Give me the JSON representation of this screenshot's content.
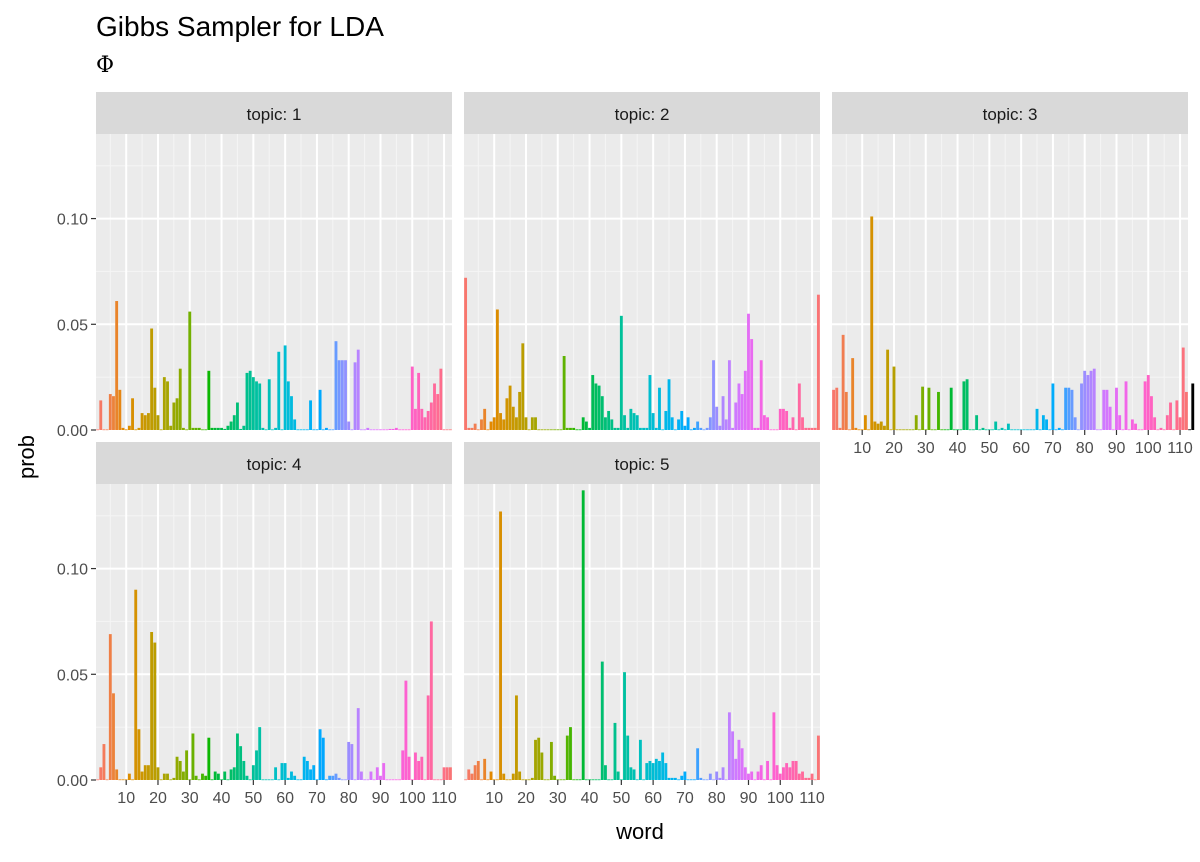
{
  "chart_data": {
    "type": "bar",
    "title": "Gibbs Sampler for LDA",
    "subtitle": "Φ",
    "xlabel": "word",
    "ylabel": "prob",
    "facet_prefix": "topic: ",
    "xlim": [
      0.5,
      112.5
    ],
    "ylim": [
      0,
      0.14
    ],
    "x_ticks": [
      "10",
      "20",
      "30",
      "40",
      "50",
      "60",
      "70",
      "80",
      "90",
      "100",
      "110"
    ],
    "y_ticks": [
      "0.00",
      "0.05",
      "0.10"
    ],
    "grid": true,
    "legend": "none",
    "hue_start": 15,
    "hue_end": 375,
    "series": [
      {
        "name": "1",
        "values": [
          0.0003,
          0.014,
          0.0003,
          0.0003,
          0.017,
          0.016,
          0.061,
          0.019,
          0.001,
          0.0003,
          0.002,
          0.015,
          0.0003,
          0.001,
          0.008,
          0.007,
          0.008,
          0.048,
          0.02,
          0.007,
          0.0003,
          0.025,
          0.023,
          0.002,
          0.013,
          0.015,
          0.029,
          0.001,
          0.0003,
          0.056,
          0.001,
          0.001,
          0.001,
          0.0003,
          0.0003,
          0.028,
          0.001,
          0.001,
          0.001,
          0.001,
          0.0005,
          0.002,
          0.004,
          0.007,
          0.013,
          0.0005,
          0.002,
          0.027,
          0.028,
          0.025,
          0.023,
          0.022,
          0.001,
          0.0003,
          0.024,
          0.0003,
          0.001,
          0.037,
          0.0003,
          0.04,
          0.023,
          0.016,
          0.005,
          0.0003,
          0.0003,
          0.0003,
          0.0003,
          0.014,
          0.0003,
          0.0003,
          0.019,
          0.0003,
          0.001,
          0.0003,
          0.0003,
          0.042,
          0.033,
          0.033,
          0.033,
          0.004,
          0.0003,
          0.032,
          0.038,
          0.0003,
          0.0003,
          0.001,
          0.0003,
          0.0003,
          0.0003,
          0.0003,
          0.0003,
          0.0003,
          0.0005,
          0.0005,
          0.001,
          0.0003,
          0.0003,
          0.0003,
          0.0003,
          0.03,
          0.01,
          0.027,
          0.01,
          0.006,
          0.009,
          0.013,
          0.022,
          0.017,
          0.029,
          0.0003,
          0.0003,
          0.0003
        ]
      },
      {
        "name": "2",
        "values": [
          0.072,
          0.001,
          0.001,
          0.003,
          0.0003,
          0.005,
          0.01,
          0.0003,
          0.004,
          0.006,
          0.057,
          0.008,
          0.005,
          0.015,
          0.021,
          0.011,
          0.006,
          0.018,
          0.041,
          0.006,
          0.0003,
          0.006,
          0.006,
          0.0003,
          0.0003,
          0.0003,
          0.0003,
          0.0003,
          0.0003,
          0.0003,
          0.0003,
          0.035,
          0.001,
          0.001,
          0.001,
          0.0003,
          0.0003,
          0.006,
          0.004,
          0.001,
          0.026,
          0.022,
          0.021,
          0.016,
          0.006,
          0.009,
          0.005,
          0.001,
          0.001,
          0.054,
          0.007,
          0.001,
          0.01,
          0.008,
          0.007,
          0.001,
          0.001,
          0.001,
          0.026,
          0.008,
          0.001,
          0.02,
          0.0003,
          0.009,
          0.024,
          0.006,
          0.0003,
          0.005,
          0.009,
          0.002,
          0.006,
          0.0003,
          0.001,
          0.004,
          0.001,
          0.0003,
          0.001,
          0.006,
          0.033,
          0.011,
          0.002,
          0.016,
          0.005,
          0.033,
          0.001,
          0.013,
          0.022,
          0.017,
          0.028,
          0.055,
          0.043,
          0.001,
          0.001,
          0.033,
          0.007,
          0.006,
          0.0003,
          0.0003,
          0.0003,
          0.01,
          0.01,
          0.009,
          0.001,
          0.006,
          0.0003,
          0.022,
          0.006,
          0.001,
          0.001,
          0.001,
          0.001,
          0.064
        ]
      },
      {
        "name": "3",
        "values": [
          0.019,
          0.02,
          0.001,
          0.045,
          0.018,
          0.0003,
          0.034,
          0.001,
          0.0003,
          0.0003,
          0.007,
          0.0003,
          0.101,
          0.004,
          0.003,
          0.004,
          0.002,
          0.038,
          0.0003,
          0.03,
          0.0003,
          0.0003,
          0.0003,
          0.0003,
          0.0003,
          0.0003,
          0.007,
          0.0003,
          0.0205,
          0.0003,
          0.02,
          0.0003,
          0.0003,
          0.018,
          0.0003,
          0.0003,
          0.0003,
          0.02,
          0.0003,
          0.0003,
          0.0003,
          0.023,
          0.024,
          0.0003,
          0.0003,
          0.007,
          0.0003,
          0.001,
          0.0003,
          0.0003,
          0.0003,
          0.004,
          0.0003,
          0.001,
          0.0003,
          0.003,
          0.0003,
          0.0003,
          0.0003,
          0.0003,
          0.0003,
          0.0003,
          0.0003,
          0.0003,
          0.01,
          0.0003,
          0.007,
          0.005,
          0.0003,
          0.022,
          0.0003,
          0.001,
          0.0003,
          0.02,
          0.02,
          0.019,
          0.006,
          0.0003,
          0.022,
          0.028,
          0.026,
          0.028,
          0.029,
          0.0003,
          0.0003,
          0.019,
          0.019,
          0.011,
          0.0003,
          0.02,
          0.007,
          0.0003,
          0.023,
          0.0003,
          0.005,
          0.003,
          0.0003,
          0.0003,
          0.023,
          0.026,
          0.016,
          0.006,
          0.0003,
          0.001,
          0.0003,
          0.007,
          0.013,
          0.0003,
          0.014,
          0.006,
          0.039,
          0.018,
          0.0003,
          0.022
        ]
      },
      {
        "name": "4",
        "values": [
          0.0003,
          0.006,
          0.017,
          0.0003,
          0.069,
          0.041,
          0.005,
          0.0003,
          0.0003,
          0.0003,
          0.003,
          0.0003,
          0.09,
          0.024,
          0.004,
          0.007,
          0.007,
          0.07,
          0.065,
          0.006,
          0.0003,
          0.003,
          0.003,
          0.0003,
          0.001,
          0.011,
          0.009,
          0.004,
          0.014,
          0.0003,
          0.022,
          0.002,
          0.0003,
          0.003,
          0.002,
          0.02,
          0.0003,
          0.004,
          0.003,
          0.0003,
          0.004,
          0.0003,
          0.005,
          0.006,
          0.022,
          0.016,
          0.009,
          0.002,
          0.0003,
          0.007,
          0.014,
          0.025,
          0.0003,
          0.0003,
          0.0003,
          0.0003,
          0.006,
          0.0003,
          0.008,
          0.008,
          0.001,
          0.004,
          0.002,
          0.0003,
          0.0003,
          0.011,
          0.009,
          0.005,
          0.007,
          0.0003,
          0.024,
          0.02,
          0.0003,
          0.002,
          0.002,
          0.003,
          0.001,
          0.0003,
          0.0003,
          0.018,
          0.017,
          0.0003,
          0.034,
          0.004,
          0.0003,
          0.0003,
          0.004,
          0.0003,
          0.006,
          0.002,
          0.008,
          0.0003,
          0.0003,
          0.0003,
          0.0003,
          0.0003,
          0.014,
          0.047,
          0.011,
          0.0003,
          0.013,
          0.009,
          0.011,
          0.0003,
          0.04,
          0.075,
          0.0003,
          0.0003,
          0.0003,
          0.006,
          0.006,
          0.006
        ]
      },
      {
        "name": "5",
        "values": [
          0.0003,
          0.005,
          0.003,
          0.007,
          0.009,
          0.0003,
          0.01,
          0.0003,
          0.004,
          0.0003,
          0.0003,
          0.127,
          0.003,
          0.0003,
          0.0003,
          0.003,
          0.04,
          0.004,
          0.0003,
          0.0003,
          0.0003,
          0.001,
          0.019,
          0.02,
          0.013,
          0.0003,
          0.0003,
          0.018,
          0.002,
          0.0003,
          0.0003,
          0.0003,
          0.021,
          0.025,
          0.0003,
          0.0003,
          0.0003,
          0.137,
          0.0003,
          0.0003,
          0.0003,
          0.0003,
          0.0003,
          0.056,
          0.007,
          0.0003,
          0.0003,
          0.027,
          0.004,
          0.0003,
          0.051,
          0.021,
          0.006,
          0.005,
          0.0003,
          0.019,
          0.0003,
          0.008,
          0.009,
          0.008,
          0.01,
          0.009,
          0.013,
          0.008,
          0.001,
          0.001,
          0.001,
          0.0003,
          0.002,
          0.004,
          0.0003,
          0.0003,
          0.0003,
          0.015,
          0.001,
          0.0003,
          0.0003,
          0.003,
          0.0003,
          0.004,
          0.001,
          0.006,
          0.0003,
          0.032,
          0.023,
          0.01,
          0.019,
          0.015,
          0.006,
          0.003,
          0.004,
          0.0003,
          0.004,
          0.007,
          0.0003,
          0.009,
          0.0003,
          0.032,
          0.007,
          0.003,
          0.006,
          0.008,
          0.006,
          0.009,
          0.009,
          0.003,
          0.004,
          0.001,
          0.001,
          0.003,
          0.0003,
          0.021
        ]
      }
    ]
  }
}
